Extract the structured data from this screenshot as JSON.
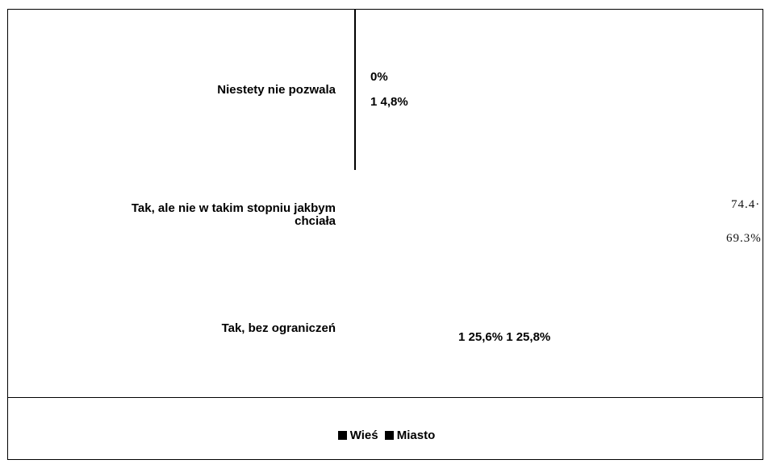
{
  "chart_data": {
    "type": "bar",
    "orientation": "horizontal",
    "categories": [
      "Niestety nie pozwala",
      "Tak, ale nie w takim stopniu jakbym chciała",
      "Tak, bez ograniczeń"
    ],
    "series": [
      {
        "name": "Wieś",
        "values": [
          0.0,
          74.4,
          25.6
        ]
      },
      {
        "name": "Miasto",
        "values": [
          4.8,
          69.3,
          25.8
        ]
      }
    ],
    "data_labels": {
      "row0": [
        "0%",
        "1 4,8%"
      ],
      "row1": [
        "74.4·",
        "69.3%"
      ],
      "row2": "1 25,6% 1 25,8%"
    },
    "legend": {
      "position": "bottom",
      "marker": "■"
    },
    "colors": {
      "Wieś": "#000000",
      "Miasto": "#000000"
    }
  }
}
